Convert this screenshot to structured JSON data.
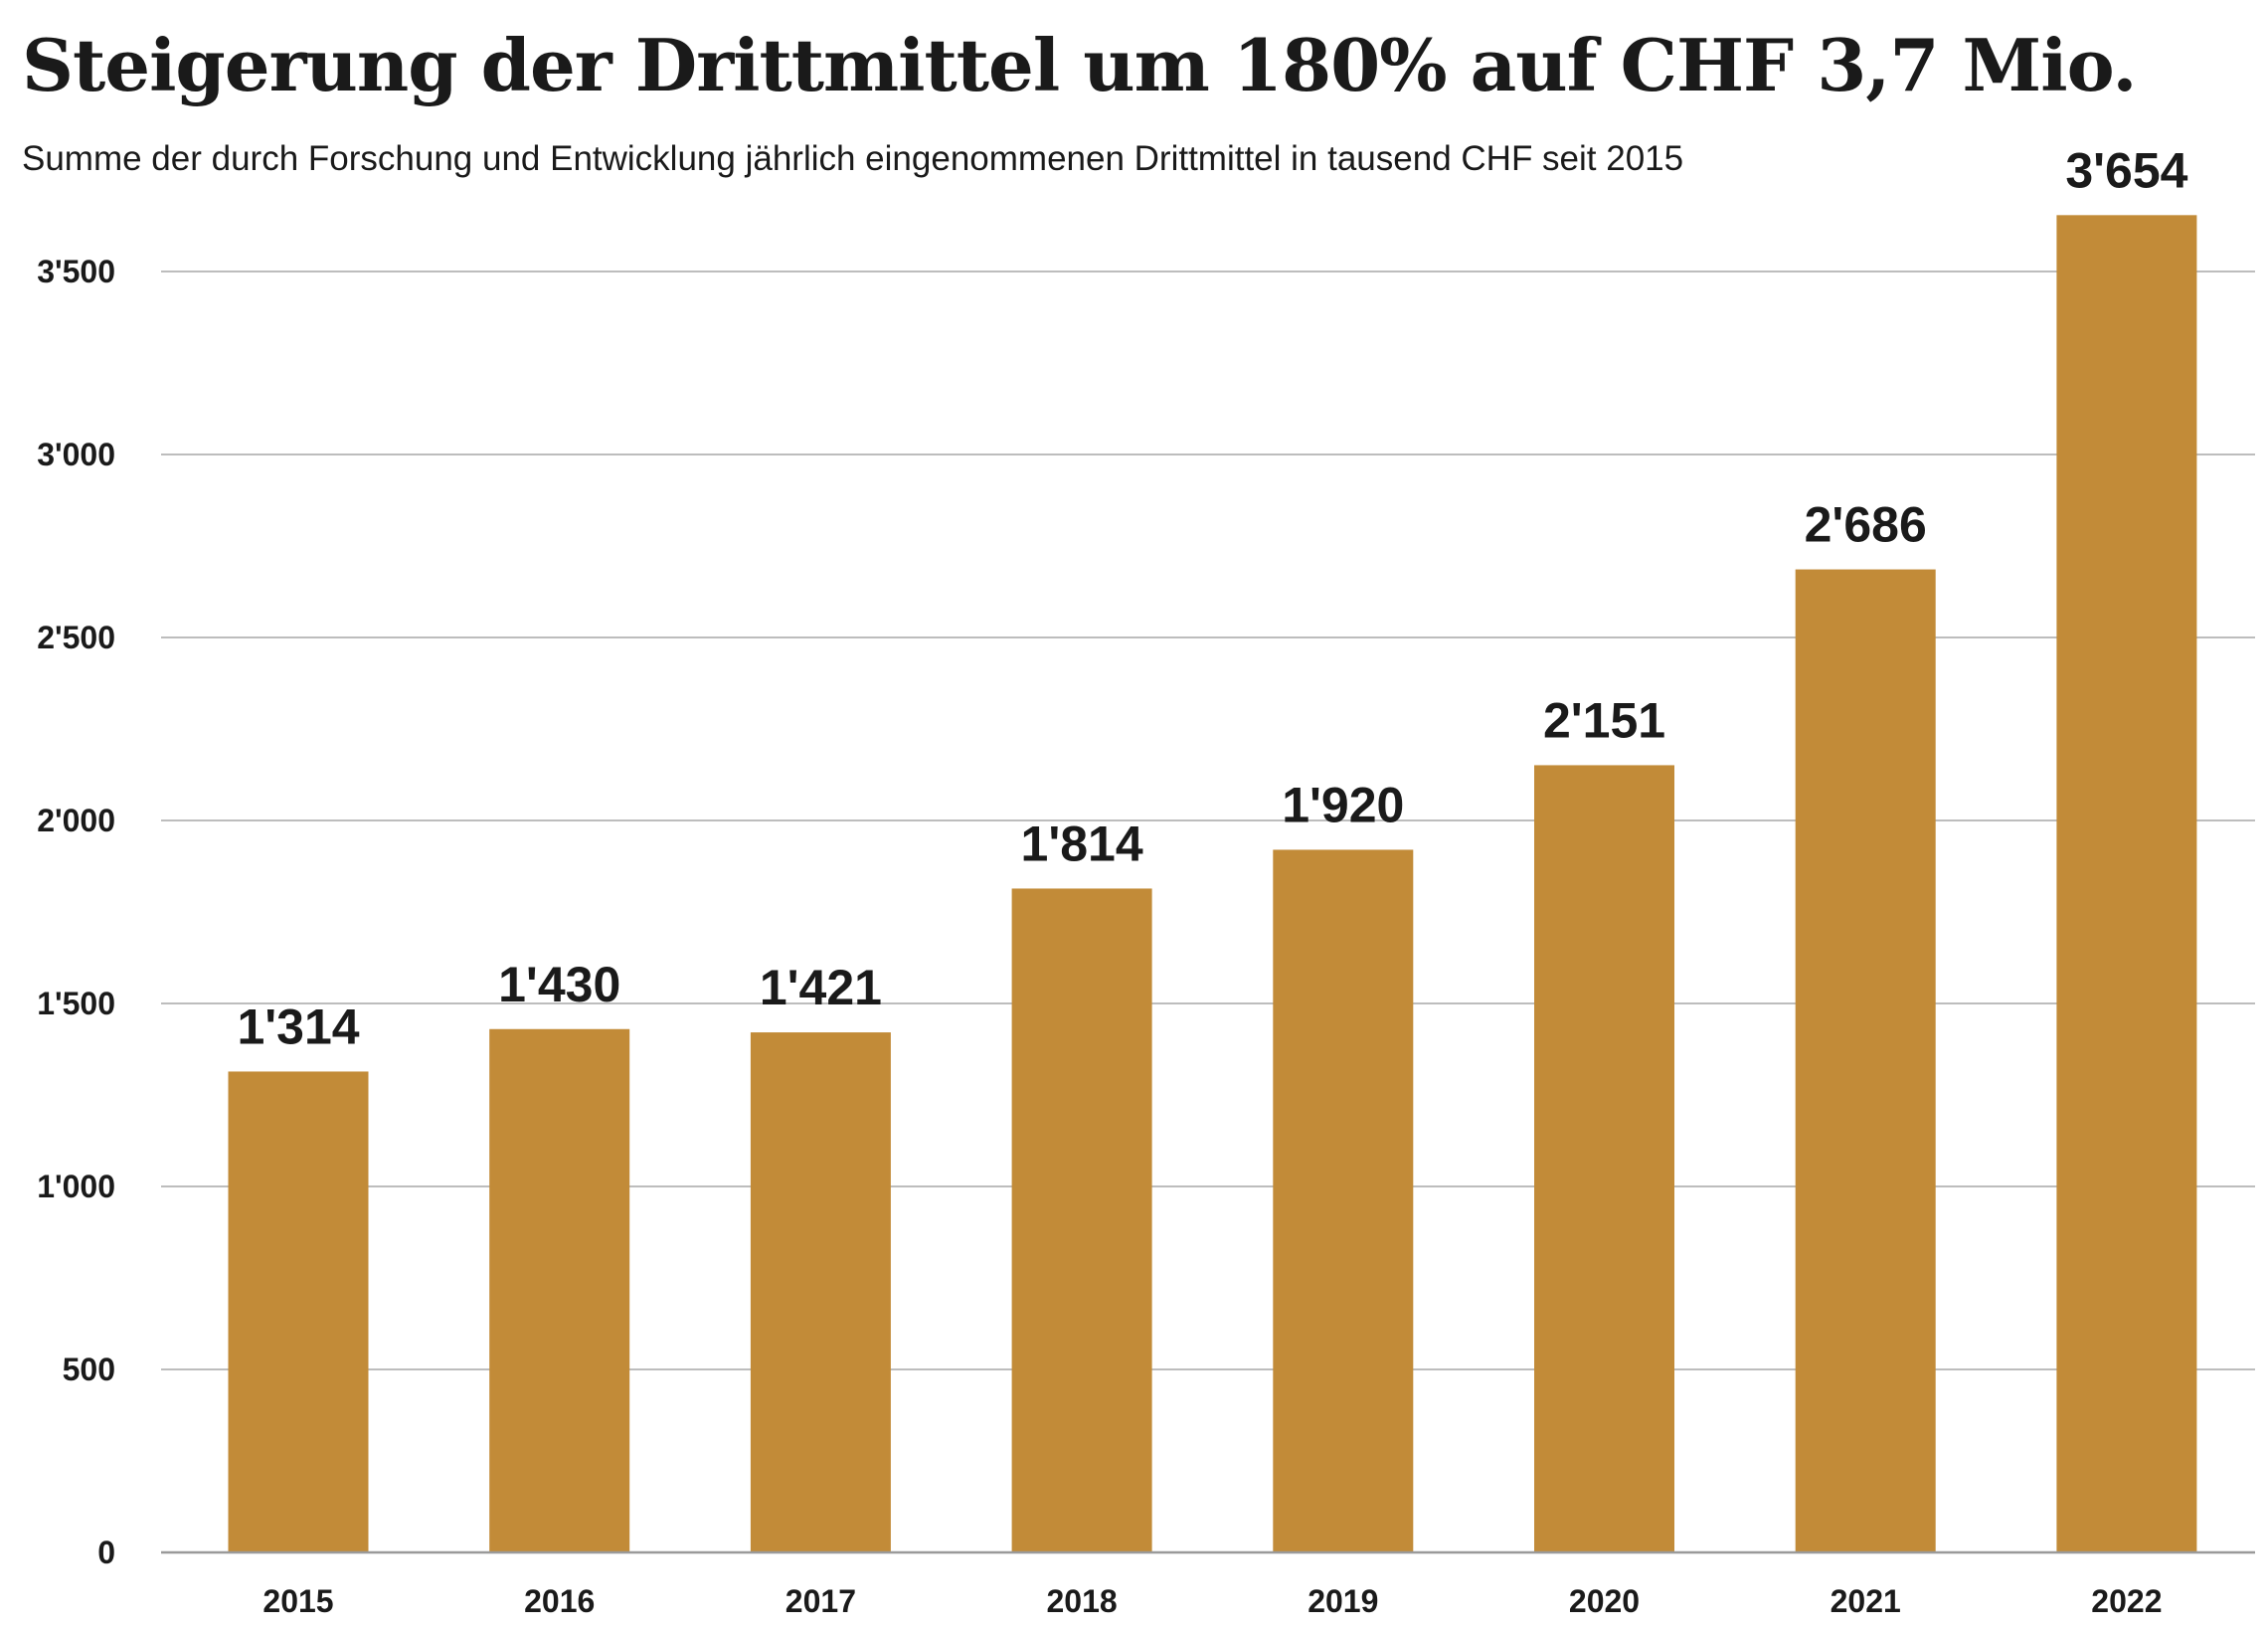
{
  "chart_data": {
    "type": "bar",
    "title": "Steigerung der Drittmittel um 180% auf CHF 3,7 Mio.",
    "subtitle": "Summe der durch Forschung und Entwicklung jährlich eingenommenen Drittmittel in tausend CHF seit 2015",
    "categories": [
      "2015",
      "2016",
      "2017",
      "2018",
      "2019",
      "2020",
      "2021",
      "2022"
    ],
    "values": [
      1314,
      1430,
      1421,
      1814,
      1920,
      2151,
      2686,
      3654
    ],
    "value_labels": [
      "1'314",
      "1'430",
      "1'421",
      "1'814",
      "1'920",
      "2'151",
      "2'686",
      "3'654"
    ],
    "yticks": [
      0,
      500,
      1000,
      1500,
      2000,
      2500,
      3000,
      3500
    ],
    "ytick_labels": [
      "0",
      "500",
      "1'000",
      "1'500",
      "2'000",
      "2'500",
      "3'000",
      "3'500"
    ],
    "ylim": [
      0,
      3500
    ],
    "xlabel": "",
    "ylabel": "",
    "grid": true,
    "legend": "none",
    "bar_color": "#c28b38"
  }
}
